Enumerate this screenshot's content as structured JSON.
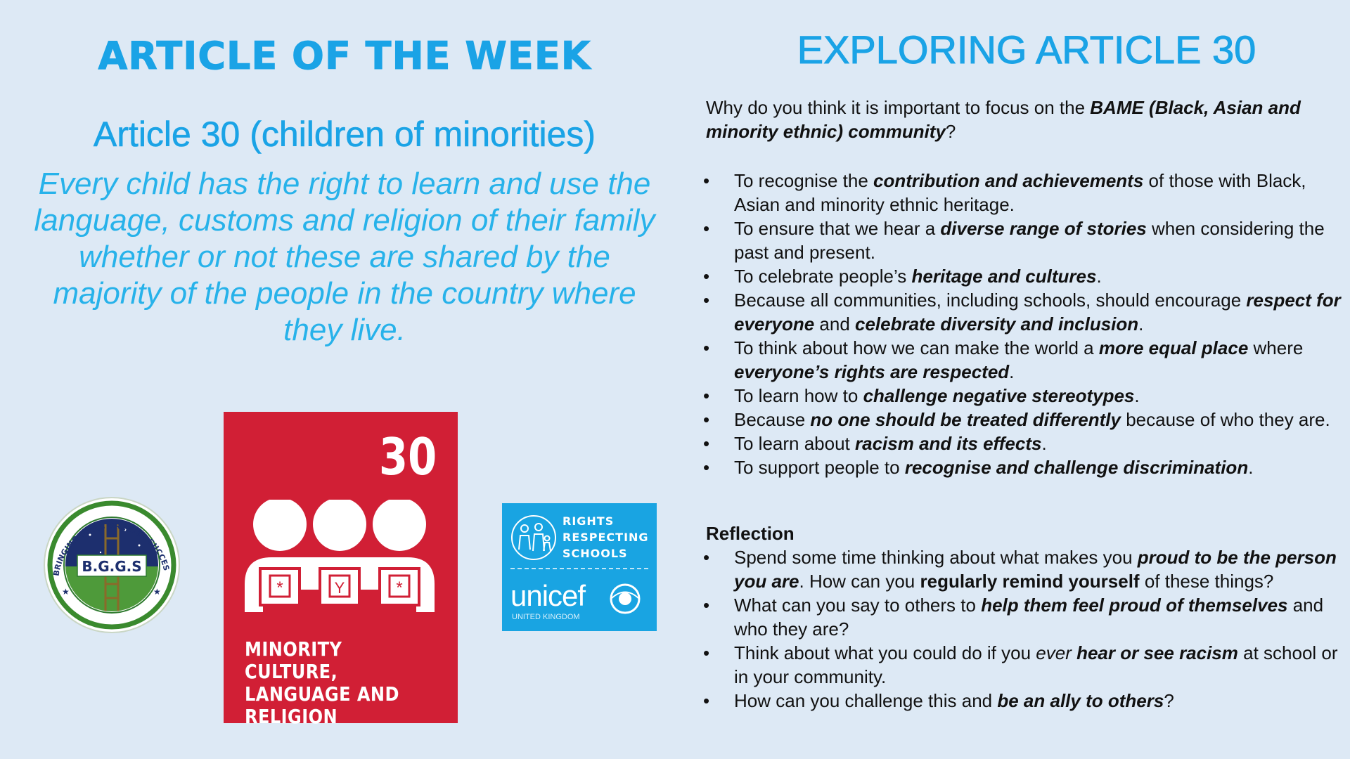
{
  "left": {
    "heading": "ARTICLE OF THE WEEK",
    "article_title": "Article 30 (children of minorities)",
    "article_description": "Every child has the right to learn and use the language, customs and religion of their family whether or not these are shared by the majority of the people in the country where they live.",
    "bggs_logo": {
      "ring_text": "BRINGING GIRLS GREATER SUCCESS",
      "initials": "B.G.G.S"
    },
    "article_card": {
      "number": "30",
      "label": "MINORITY CULTURE, LANGUAGE AND RELIGION",
      "color": "#d11f35"
    },
    "rrs_logo": {
      "label_lines": [
        "RIGHTS",
        "RESPECTING",
        "SCHOOLS"
      ],
      "brand": "unicef",
      "sub": "UNITED KINGDOM",
      "color": "#19a4e2"
    }
  },
  "right": {
    "heading": "EXPLORING ARTICLE 30",
    "question": [
      {
        "t": "Why do you think it is important to focus on the "
      },
      {
        "t": "BAME (Black, Asian and minority ethnic) community",
        "s": "bi"
      },
      {
        "t": "?"
      }
    ],
    "reasons": [
      [
        {
          "t": "To recognise the "
        },
        {
          "t": "contribution and achievements",
          "s": "bi"
        },
        {
          "t": " of those with Black, Asian and minority ethnic heritage."
        }
      ],
      [
        {
          "t": "To ensure that we hear a "
        },
        {
          "t": "diverse range of stories",
          "s": "bi"
        },
        {
          "t": " when considering the past and present."
        }
      ],
      [
        {
          "t": "To celebrate people’s "
        },
        {
          "t": "heritage and cultures",
          "s": "bi"
        },
        {
          "t": "."
        }
      ],
      [
        {
          "t": "Because all communities, including schools, should encourage "
        },
        {
          "t": "respect for everyone",
          "s": "bi"
        },
        {
          "t": " and "
        },
        {
          "t": "celebrate diversity and inclusion",
          "s": "bi"
        },
        {
          "t": "."
        }
      ],
      [
        {
          "t": "To think about how we can make the world a "
        },
        {
          "t": "more equal place",
          "s": "bi"
        },
        {
          "t": " where "
        },
        {
          "t": "everyone’s rights are respected",
          "s": "bi"
        },
        {
          "t": "."
        }
      ],
      [
        {
          "t": "To learn how to "
        },
        {
          "t": "challenge negative stereotypes",
          "s": "bi"
        },
        {
          "t": "."
        }
      ],
      [
        {
          "t": "Because "
        },
        {
          "t": "no one should be treated differently",
          "s": "bi"
        },
        {
          "t": " because of who they are."
        }
      ],
      [
        {
          "t": "To learn about "
        },
        {
          "t": "racism and its effects",
          "s": "bi"
        },
        {
          "t": "."
        }
      ],
      [
        {
          "t": "To support people to "
        },
        {
          "t": "recognise and challenge discrimination",
          "s": "bi"
        },
        {
          "t": "."
        }
      ]
    ],
    "reflection_heading": "Reflection",
    "reflection_points": [
      [
        {
          "t": "Spend some time thinking about what makes you "
        },
        {
          "t": "proud to be the person you are",
          "s": "bi"
        },
        {
          "t": ". How can you "
        },
        {
          "t": "regularly remind yourself",
          "s": "b"
        },
        {
          "t": " of these things?"
        }
      ],
      [
        {
          "t": "What can you say to others to "
        },
        {
          "t": "help them feel proud of themselves",
          "s": "bi"
        },
        {
          "t": " and who they are?"
        }
      ],
      [
        {
          "t": "Think about what you could do if you "
        },
        {
          "t": "ever",
          "s": "i"
        },
        {
          "t": " "
        },
        {
          "t": "hear or see racism",
          "s": "bi"
        },
        {
          "t": " at school or in your community."
        }
      ],
      [
        {
          "t": "How can you challenge this and "
        },
        {
          "t": "be an ally to others",
          "s": "bi"
        },
        {
          "t": "?"
        }
      ]
    ]
  }
}
